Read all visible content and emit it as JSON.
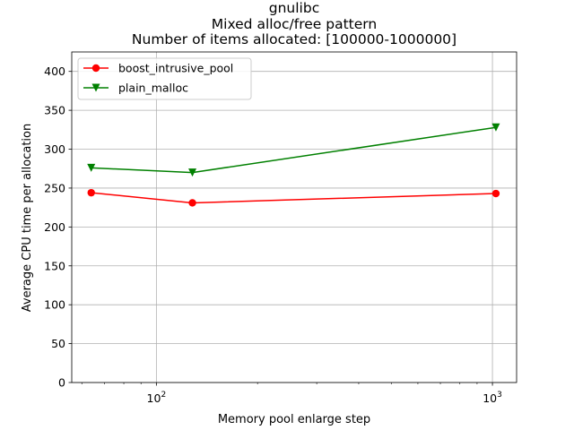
{
  "chart_data": {
    "type": "line",
    "title_lines": [
      "gnulibc",
      "Mixed alloc/free pattern",
      "Number of items allocated: [100000-1000000]"
    ],
    "xlabel": "Memory pool enlarge step",
    "ylabel": "Average CPU time per allocation",
    "x_scale": "log",
    "xlim": [
      56,
      1180
    ],
    "ylim": [
      0,
      425
    ],
    "x_ticks": [
      {
        "value": 100,
        "base": "10",
        "exp": "2"
      },
      {
        "value": 1000,
        "base": "10",
        "exp": "3"
      }
    ],
    "x_minor_ticks": [
      60,
      70,
      80,
      90,
      200,
      300,
      400,
      500,
      600,
      700,
      800,
      900
    ],
    "y_ticks": [
      0,
      50,
      100,
      150,
      200,
      250,
      300,
      350,
      400
    ],
    "grid": true,
    "legend_position": "top-left",
    "x": [
      64,
      128,
      1024
    ],
    "series": [
      {
        "name": "boost_intrusive_pool",
        "values": [
          244,
          231,
          243
        ],
        "color": "#ff0000",
        "marker": "circle"
      },
      {
        "name": "plain_malloc",
        "values": [
          276,
          270,
          328
        ],
        "color": "#008000",
        "marker": "triangle-down"
      }
    ]
  }
}
